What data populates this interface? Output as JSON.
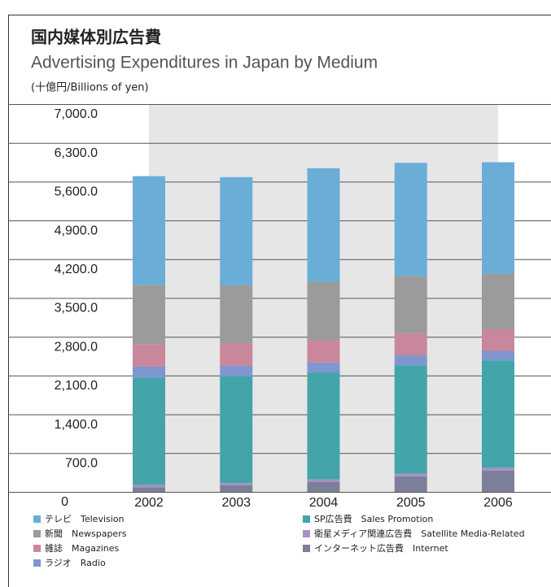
{
  "chart_data": {
    "type": "stacked_bar",
    "title": "国内媒体別広告費",
    "subtitle": "Advertising Expenditures in Japan by Medium",
    "unit_label": "(十億円/Billions of yen)",
    "categories": [
      "2002",
      "2003",
      "2004",
      "2005",
      "2006"
    ],
    "series": [
      {
        "name": "インターネット広告費　Internet",
        "color": "#7c7f99",
        "values": [
          84,
          118,
          181,
          281,
          383
        ]
      },
      {
        "name": "衛星メディア関連広告費　Satellite Media-Related",
        "color": "#a98fc4",
        "values": [
          42,
          42,
          44,
          49,
          54
        ]
      },
      {
        "name": "SP広告費　Sales Promotion",
        "color": "#43a5aa",
        "values": [
          1935,
          1924,
          1932,
          1957,
          1935
        ]
      },
      {
        "name": "ラジオ　Radio",
        "color": "#7f96cf",
        "values": [
          200,
          190,
          180,
          178,
          174
        ]
      },
      {
        "name": "雑誌　Magazines",
        "color": "#c9879b",
        "values": [
          405,
          411,
          399,
          395,
          389
        ]
      },
      {
        "name": "新聞　Newspapers",
        "color": "#9b9b9b",
        "values": [
          1071,
          1043,
          1056,
          1038,
          999
        ]
      },
      {
        "name": "テレビ　Television",
        "color": "#6aaed8",
        "values": [
          1962,
          1953,
          2048,
          2041,
          2016
        ]
      }
    ],
    "ylim": [
      0,
      7000
    ],
    "yticks": [
      0,
      {
        "value": 700,
        "label": "700.0"
      },
      {
        "value": 1400,
        "label": "1,400.0"
      },
      {
        "value": 2100,
        "label": "2,100.0"
      },
      {
        "value": 2800,
        "label": "2,800.0"
      },
      {
        "value": 3500,
        "label": "3,500.0"
      },
      {
        "value": 4200,
        "label": "4,200.0"
      },
      {
        "value": 4900,
        "label": "4,900.0"
      },
      {
        "value": 5600,
        "label": "5,600.0"
      },
      {
        "value": 6300,
        "label": "6,300.0"
      },
      {
        "value": 7000,
        "label": "7,000.0"
      }
    ],
    "grid": true
  }
}
